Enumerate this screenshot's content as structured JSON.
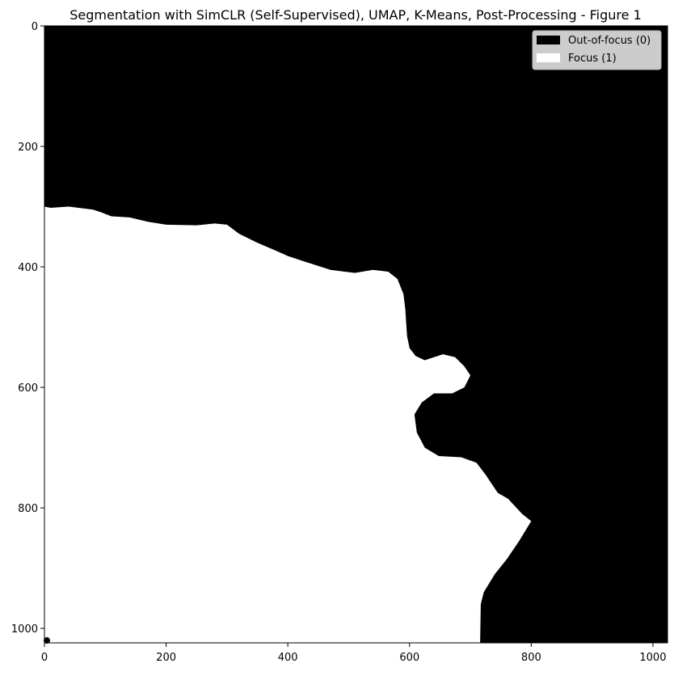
{
  "chart_data": {
    "type": "heatmap",
    "title": "Segmentation with SimCLR (Self-Supervised), UMAP, K-Means, Post-Processing - Figure 1",
    "xlabel": "",
    "ylabel": "",
    "xlim": [
      0,
      1024
    ],
    "ylim": [
      1024,
      0
    ],
    "y_inverted": true,
    "grid": false,
    "legend_position": "top-right",
    "x_ticks": [
      0,
      200,
      400,
      600,
      800,
      1000
    ],
    "y_ticks": [
      0,
      200,
      400,
      600,
      800,
      1000
    ],
    "classes": [
      {
        "name": "Out-of-focus (0)",
        "value": 0,
        "color": "#000000"
      },
      {
        "name": "Focus (1)",
        "value": 1,
        "color": "#ffffff"
      }
    ],
    "focus_region_boundary": [
      [
        0,
        300
      ],
      [
        10,
        302
      ],
      [
        40,
        300
      ],
      [
        80,
        305
      ],
      [
        95,
        310
      ],
      [
        110,
        316
      ],
      [
        140,
        318
      ],
      [
        170,
        325
      ],
      [
        200,
        330
      ],
      [
        250,
        331
      ],
      [
        280,
        328
      ],
      [
        300,
        330
      ],
      [
        320,
        345
      ],
      [
        350,
        360
      ],
      [
        380,
        373
      ],
      [
        400,
        382
      ],
      [
        430,
        392
      ],
      [
        470,
        405
      ],
      [
        510,
        410
      ],
      [
        540,
        405
      ],
      [
        565,
        408
      ],
      [
        580,
        420
      ],
      [
        590,
        445
      ],
      [
        593,
        470
      ],
      [
        596,
        515
      ],
      [
        600,
        535
      ],
      [
        610,
        548
      ],
      [
        625,
        555
      ],
      [
        640,
        550
      ],
      [
        655,
        545
      ],
      [
        675,
        550
      ],
      [
        690,
        565
      ],
      [
        700,
        580
      ],
      [
        690,
        600
      ],
      [
        670,
        610
      ],
      [
        640,
        610
      ],
      [
        620,
        625
      ],
      [
        608,
        645
      ],
      [
        612,
        675
      ],
      [
        625,
        700
      ],
      [
        648,
        714
      ],
      [
        685,
        716
      ],
      [
        710,
        725
      ],
      [
        725,
        745
      ],
      [
        745,
        775
      ],
      [
        762,
        785
      ],
      [
        785,
        810
      ],
      [
        800,
        822
      ],
      [
        780,
        855
      ],
      [
        760,
        885
      ],
      [
        740,
        910
      ],
      [
        722,
        940
      ],
      [
        717,
        960
      ],
      [
        716,
        1024
      ],
      [
        0,
        1024
      ]
    ],
    "noise_blob": {
      "x": 0,
      "y": 1020,
      "value": 1
    }
  },
  "colors": {
    "background": "#ffffff",
    "out_of_focus": "#000000",
    "focus": "#ffffff",
    "legend_bg": "#cccccc"
  }
}
